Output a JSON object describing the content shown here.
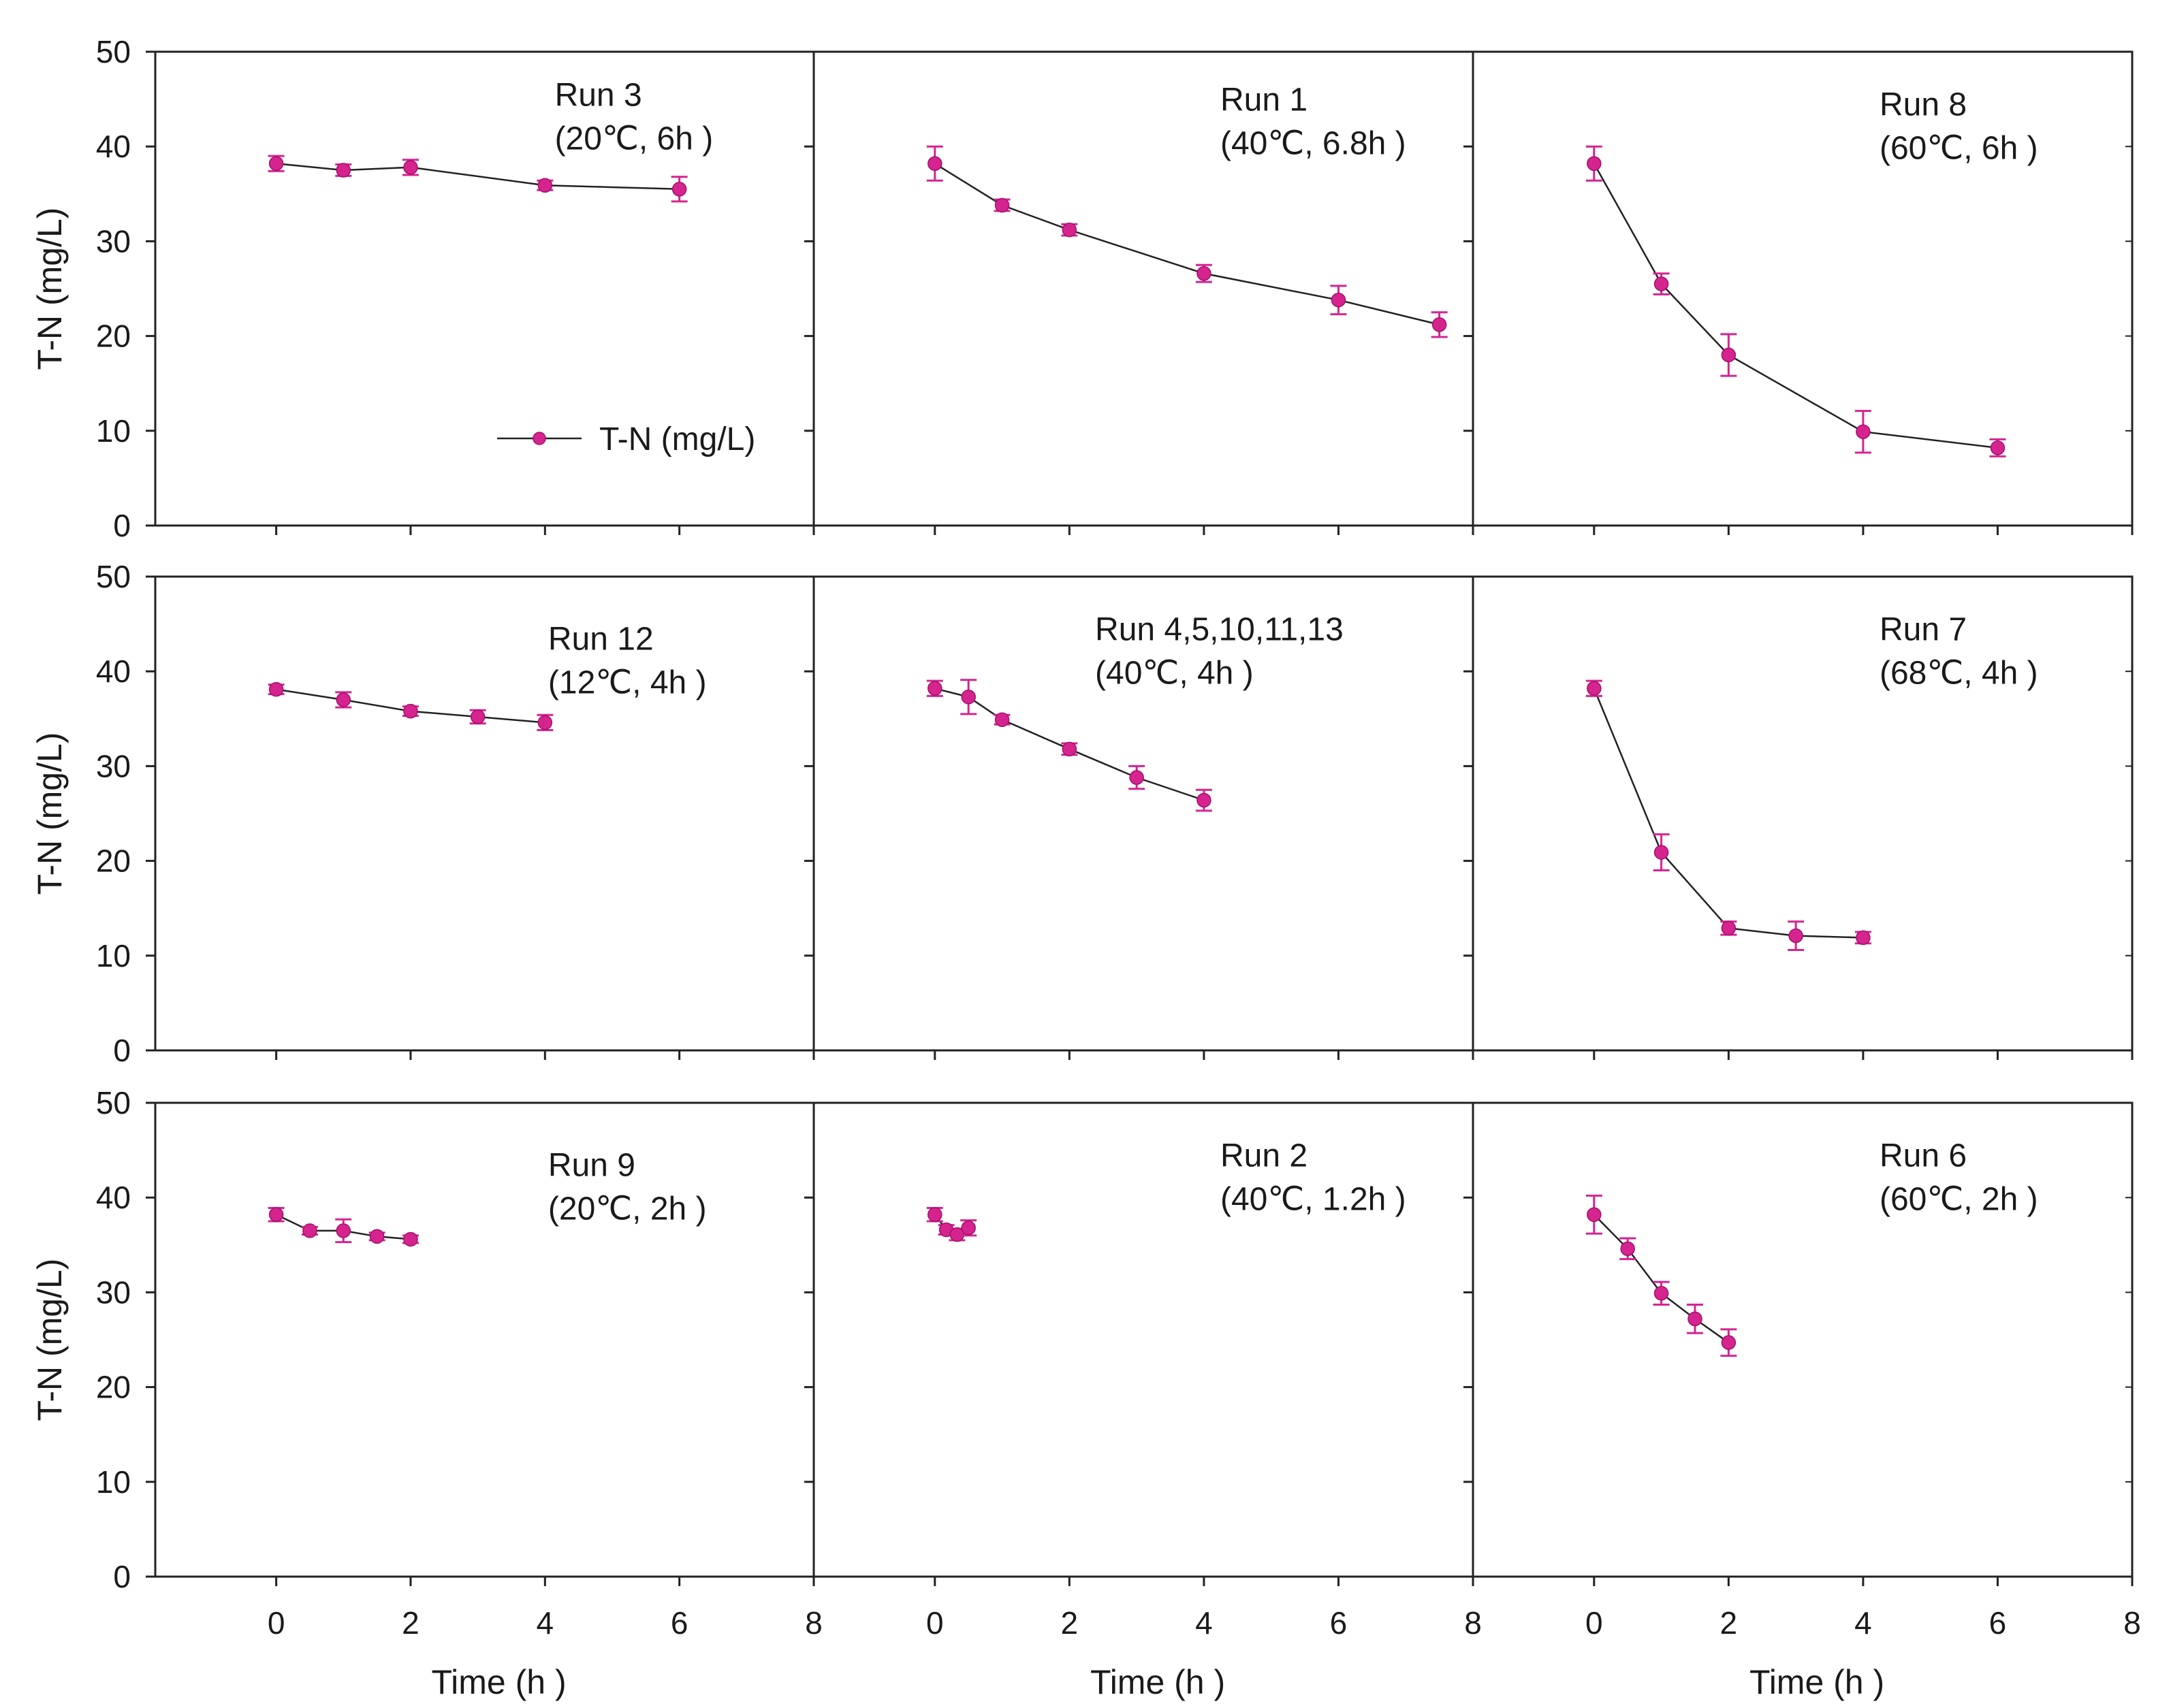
{
  "chart_data": {
    "type": "line",
    "figure": "T-N concentration vs time for 13 hydrolysis runs",
    "series_color": "#d6248f",
    "line_color": "#222222",
    "legend": {
      "label": "T-N (mg/L)",
      "placement": "in Run 3 panel, lower-right"
    },
    "ylabel": "T-N (mg/L)",
    "xlabel": "Time (h )",
    "ylim": [
      0,
      50
    ],
    "xlim": [
      -1.8,
      8
    ],
    "yticks": [
      "0",
      "10",
      "20",
      "30",
      "40",
      "50"
    ],
    "xticks": [
      "0",
      "2",
      "4",
      "6",
      "8"
    ],
    "panels": [
      {
        "run": "Run 3",
        "cond": "(20℃, 6h )",
        "x": [
          0,
          1,
          2,
          4,
          6
        ],
        "y": [
          38.2,
          37.5,
          37.8,
          35.9,
          35.5
        ],
        "err": [
          0.8,
          0.6,
          0.8,
          0.5,
          1.3
        ]
      },
      {
        "run": "Run 1",
        "cond": "(40℃, 6.8h )",
        "x": [
          0,
          1,
          2,
          4,
          6,
          7.5
        ],
        "y": [
          38.2,
          33.8,
          31.2,
          26.6,
          23.8,
          21.2
        ],
        "err": [
          1.8,
          0.6,
          0.6,
          0.9,
          1.5,
          1.3
        ]
      },
      {
        "run": "Run 8",
        "cond": "(60℃, 6h )",
        "x": [
          0,
          1,
          2,
          4,
          6
        ],
        "y": [
          38.2,
          25.5,
          18.0,
          9.9,
          8.2
        ],
        "err": [
          1.8,
          1.1,
          2.2,
          2.2,
          0.9
        ]
      },
      {
        "run": "Run 12",
        "cond": "(12℃, 4h )",
        "x": [
          0,
          1,
          2,
          3,
          4
        ],
        "y": [
          38.1,
          37.0,
          35.8,
          35.2,
          34.6
        ],
        "err": [
          0.5,
          0.8,
          0.5,
          0.7,
          0.8
        ]
      },
      {
        "run": "Run 4,5,10,11,13",
        "cond": "(40℃, 4h )",
        "x": [
          0,
          0.5,
          1,
          2,
          3,
          4
        ],
        "y": [
          38.2,
          37.3,
          34.9,
          31.8,
          28.8,
          26.4
        ],
        "err": [
          0.8,
          1.8,
          0.5,
          0.6,
          1.2,
          1.1
        ]
      },
      {
        "run": "Run 7",
        "cond": "(68℃, 4h )",
        "x": [
          0,
          1,
          2,
          3,
          4
        ],
        "y": [
          38.2,
          20.9,
          12.9,
          12.1,
          11.9
        ],
        "err": [
          0.8,
          1.9,
          0.7,
          1.5,
          0.6
        ]
      },
      {
        "run": "Run 9",
        "cond": "(20℃, 2h )",
        "x": [
          0,
          0.5,
          1,
          1.5,
          2
        ],
        "y": [
          38.2,
          36.5,
          36.5,
          35.9,
          35.6
        ],
        "err": [
          0.7,
          0.4,
          1.2,
          0.4,
          0.4
        ]
      },
      {
        "run": "Run 2",
        "cond": "(40℃, 1.2h )",
        "x": [
          0,
          0.17,
          0.33,
          0.5
        ],
        "y": [
          38.2,
          36.6,
          36.1,
          36.8
        ],
        "err": [
          0.7,
          0.5,
          0.6,
          0.8
        ]
      },
      {
        "run": "Run 6",
        "cond": "(60℃, 2h )",
        "x": [
          0,
          0.5,
          1,
          1.5,
          2
        ],
        "y": [
          38.2,
          34.6,
          29.9,
          27.2,
          24.7
        ],
        "err": [
          2.0,
          1.1,
          1.2,
          1.5,
          1.4
        ]
      }
    ]
  }
}
